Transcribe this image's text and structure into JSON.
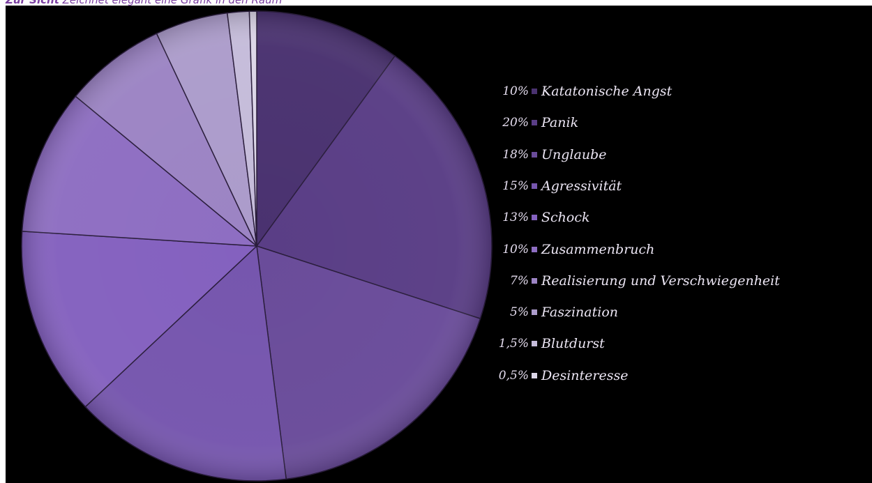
{
  "caption": {
    "bold": "Zur Sicht",
    "text": "Zeichnet elegant eine Grafik in den Raum"
  },
  "colors": {
    "background": "#000000",
    "text": "#ece6f4"
  },
  "chart_data": {
    "type": "pie",
    "title": "",
    "legend_position": "right",
    "slices": [
      {
        "label": "Katatonische Angst",
        "pct_label": "10%",
        "value": 10,
        "color": "#4a3270"
      },
      {
        "label": "Panik",
        "pct_label": "20%",
        "value": 20,
        "color": "#5a3e86"
      },
      {
        "label": "Unglaube",
        "pct_label": "18%",
        "value": 18,
        "color": "#6a4c9a"
      },
      {
        "label": "Agressivität",
        "pct_label": "15%",
        "value": 15,
        "color": "#7656ae"
      },
      {
        "label": "Schock",
        "pct_label": "13%",
        "value": 13,
        "color": "#8461bf"
      },
      {
        "label": "Zusammenbruch",
        "pct_label": "10%",
        "value": 10,
        "color": "#8e6ec2"
      },
      {
        "label": "Realisierung und Verschwiegenheit",
        "pct_label": "7%",
        "value": 7,
        "color": "#9c84c4"
      },
      {
        "label": "Faszination",
        "pct_label": "5%",
        "value": 5,
        "color": "#ac9ccb"
      },
      {
        "label": "Blutdurst",
        "pct_label": "1,5%",
        "value": 1.5,
        "color": "#c5bcda"
      },
      {
        "label": "Desinteresse",
        "pct_label": "0,5%",
        "value": 0.5,
        "color": "#dcd6e8"
      }
    ]
  }
}
